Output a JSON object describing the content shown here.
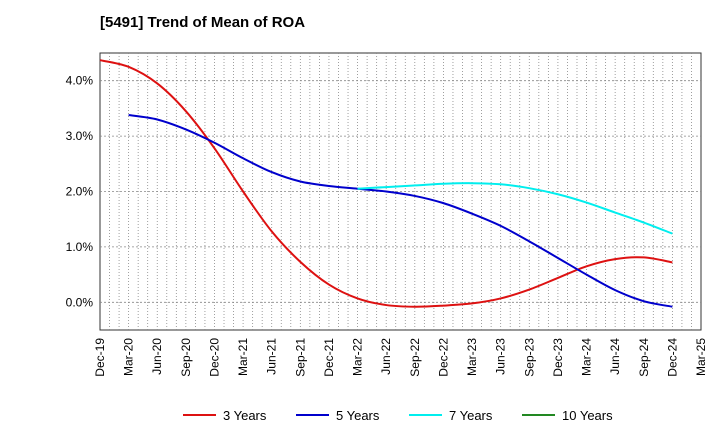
{
  "chart_data": {
    "type": "line",
    "title": "[5491]  Trend of Mean of ROA",
    "xlabel": "",
    "ylabel": "",
    "x_ticks": [
      "Dec-19",
      "Mar-20",
      "Jun-20",
      "Sep-20",
      "Dec-20",
      "Mar-21",
      "Jun-21",
      "Sep-21",
      "Dec-21",
      "Mar-22",
      "Jun-22",
      "Sep-22",
      "Dec-22",
      "Mar-23",
      "Jun-23",
      "Sep-23",
      "Dec-23",
      "Mar-24",
      "Jun-24",
      "Sep-24",
      "Dec-24",
      "Mar-25"
    ],
    "y_ticks": [
      "0.0%",
      "1.0%",
      "2.0%",
      "3.0%",
      "4.0%"
    ],
    "y_tick_values": [
      0,
      1,
      2,
      3,
      4
    ],
    "ylim": [
      -0.5,
      4.5
    ],
    "grid": true,
    "legend_position": "bottom",
    "series": [
      {
        "name": "3 Years",
        "color": "#dd1111",
        "x": [
          "Dec-19",
          "Mar-20",
          "Jun-20",
          "Sep-20",
          "Dec-20",
          "Mar-21",
          "Jun-21",
          "Sep-21",
          "Dec-21",
          "Mar-22",
          "Jun-22",
          "Sep-22",
          "Dec-22",
          "Mar-23",
          "Jun-23",
          "Sep-23",
          "Dec-23",
          "Mar-24",
          "Jun-24",
          "Sep-24",
          "Dec-24"
        ],
        "values": [
          4.37,
          4.25,
          3.95,
          3.45,
          2.78,
          2.0,
          1.28,
          0.73,
          0.32,
          0.07,
          -0.05,
          -0.08,
          -0.06,
          -0.02,
          0.07,
          0.23,
          0.44,
          0.65,
          0.78,
          0.81,
          0.72
        ]
      },
      {
        "name": "5 Years",
        "color": "#0000cc",
        "x": [
          "Mar-20",
          "Jun-20",
          "Sep-20",
          "Dec-20",
          "Mar-21",
          "Jun-21",
          "Sep-21",
          "Dec-21",
          "Mar-22",
          "Jun-22",
          "Sep-22",
          "Dec-22",
          "Mar-23",
          "Jun-23",
          "Sep-23",
          "Dec-23",
          "Mar-24",
          "Jun-24",
          "Sep-24",
          "Dec-24"
        ],
        "values": [
          3.38,
          3.3,
          3.12,
          2.88,
          2.6,
          2.35,
          2.18,
          2.1,
          2.05,
          2.0,
          1.92,
          1.79,
          1.6,
          1.38,
          1.1,
          0.8,
          0.5,
          0.22,
          0.02,
          -0.08
        ]
      },
      {
        "name": "7 Years",
        "color": "#00eeee",
        "x": [
          "Mar-22",
          "Jun-22",
          "Sep-22",
          "Dec-22",
          "Mar-23",
          "Jun-23",
          "Sep-23",
          "Dec-23",
          "Mar-24",
          "Jun-24",
          "Sep-24",
          "Dec-24"
        ],
        "values": [
          2.05,
          2.08,
          2.11,
          2.14,
          2.15,
          2.13,
          2.06,
          1.95,
          1.8,
          1.62,
          1.44,
          1.24
        ]
      },
      {
        "name": "10 Years",
        "color": "#228822",
        "x": [],
        "values": []
      }
    ]
  }
}
